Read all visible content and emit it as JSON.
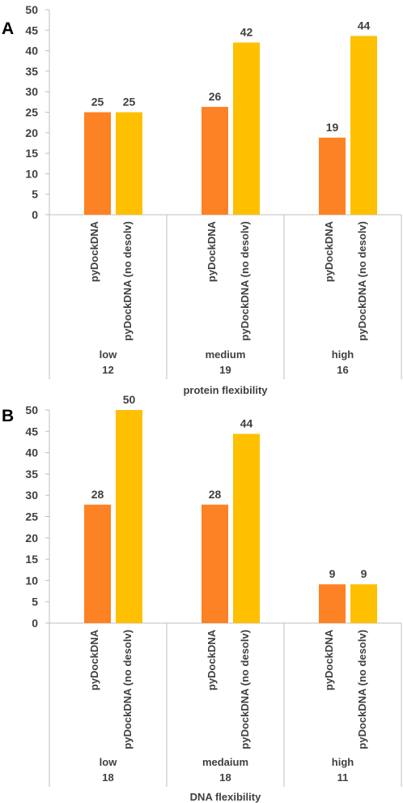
{
  "colors": {
    "series_1": "#fd8224",
    "series_2": "#fec000",
    "axis": "#bfbfbf",
    "text": "#404040",
    "panel_letter": "#000000"
  },
  "chart_data": [
    {
      "panel_label": "A",
      "type": "bar",
      "y_ticks": [
        "0",
        "5",
        "10",
        "15",
        "20",
        "25",
        "30",
        "35",
        "40",
        "45",
        "50"
      ],
      "ylim": [
        0,
        50
      ],
      "grid": false,
      "xlabel": "protein flexibility",
      "groups": [
        {
          "name": "low",
          "count": "12",
          "bars": [
            {
              "label": "pyDockDNA",
              "value": 25,
              "value_label": "25",
              "series": 1
            },
            {
              "label": "pyDockDNA (no desolv)",
              "value": 25,
              "value_label": "25",
              "series": 2
            }
          ]
        },
        {
          "name": "medium",
          "count": "19",
          "bars": [
            {
              "label": "pyDockDNA",
              "value": 26.3,
              "value_label": "26",
              "series": 1
            },
            {
              "label": "pyDockDNA (no desolv)",
              "value": 42,
              "value_label": "42",
              "series": 2
            }
          ]
        },
        {
          "name": "high",
          "count": "16",
          "bars": [
            {
              "label": "pyDockDNA",
              "value": 18.8,
              "value_label": "19",
              "series": 1
            },
            {
              "label": "pyDockDNA (no desolv)",
              "value": 43.6,
              "value_label": "44",
              "series": 2
            }
          ]
        }
      ]
    },
    {
      "panel_label": "B",
      "type": "bar",
      "y_ticks": [
        "0",
        "5",
        "10",
        "15",
        "20",
        "25",
        "30",
        "35",
        "40",
        "45",
        "50"
      ],
      "ylim": [
        0,
        50
      ],
      "grid": false,
      "xlabel": "DNA  flexibility",
      "groups": [
        {
          "name": "low",
          "count": "18",
          "bars": [
            {
              "label": "pyDockDNA",
              "value": 27.8,
              "value_label": "28",
              "series": 1
            },
            {
              "label": "pyDockDNA (no desolv)",
              "value": 50,
              "value_label": "50",
              "series": 2
            }
          ]
        },
        {
          "name": "medaium",
          "count": "18",
          "bars": [
            {
              "label": "pyDockDNA",
              "value": 27.8,
              "value_label": "28",
              "series": 1
            },
            {
              "label": "pyDockDNA (no desolv)",
              "value": 44.4,
              "value_label": "44",
              "series": 2
            }
          ]
        },
        {
          "name": "high",
          "count": "11",
          "bars": [
            {
              "label": "pyDockDNA",
              "value": 9.1,
              "value_label": "9",
              "series": 1
            },
            {
              "label": "pyDockDNA (no desolv)",
              "value": 9.1,
              "value_label": "9",
              "series": 2
            }
          ]
        }
      ]
    }
  ]
}
